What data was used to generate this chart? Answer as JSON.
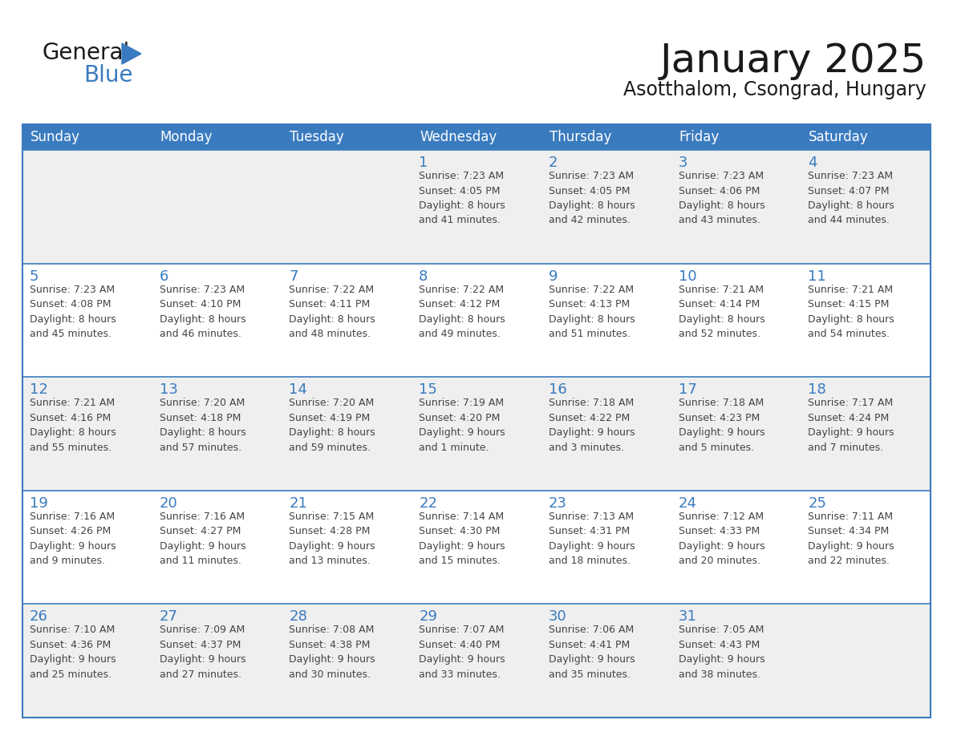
{
  "title": "January 2025",
  "subtitle": "Asotthalom, Csongrad, Hungary",
  "header_bg_color": "#3a7bbf",
  "header_text_color": "#ffffff",
  "cell_bg_even": "#efefef",
  "cell_bg_odd": "#ffffff",
  "border_color": "#3a7bbf",
  "text_color": "#444444",
  "day_number_color": "#3a7bbf",
  "days_of_week": [
    "Sunday",
    "Monday",
    "Tuesday",
    "Wednesday",
    "Thursday",
    "Friday",
    "Saturday"
  ],
  "logo_text1_color": "#1a1a1a",
  "logo_text2_color": "#3a7bbf",
  "logo_triangle_color": "#3a7bbf",
  "title_color": "#1a1a1a",
  "calendar_data": [
    [
      {
        "day": "",
        "info": ""
      },
      {
        "day": "",
        "info": ""
      },
      {
        "day": "",
        "info": ""
      },
      {
        "day": "1",
        "info": "Sunrise: 7:23 AM\nSunset: 4:05 PM\nDaylight: 8 hours\nand 41 minutes."
      },
      {
        "day": "2",
        "info": "Sunrise: 7:23 AM\nSunset: 4:05 PM\nDaylight: 8 hours\nand 42 minutes."
      },
      {
        "day": "3",
        "info": "Sunrise: 7:23 AM\nSunset: 4:06 PM\nDaylight: 8 hours\nand 43 minutes."
      },
      {
        "day": "4",
        "info": "Sunrise: 7:23 AM\nSunset: 4:07 PM\nDaylight: 8 hours\nand 44 minutes."
      }
    ],
    [
      {
        "day": "5",
        "info": "Sunrise: 7:23 AM\nSunset: 4:08 PM\nDaylight: 8 hours\nand 45 minutes."
      },
      {
        "day": "6",
        "info": "Sunrise: 7:23 AM\nSunset: 4:10 PM\nDaylight: 8 hours\nand 46 minutes."
      },
      {
        "day": "7",
        "info": "Sunrise: 7:22 AM\nSunset: 4:11 PM\nDaylight: 8 hours\nand 48 minutes."
      },
      {
        "day": "8",
        "info": "Sunrise: 7:22 AM\nSunset: 4:12 PM\nDaylight: 8 hours\nand 49 minutes."
      },
      {
        "day": "9",
        "info": "Sunrise: 7:22 AM\nSunset: 4:13 PM\nDaylight: 8 hours\nand 51 minutes."
      },
      {
        "day": "10",
        "info": "Sunrise: 7:21 AM\nSunset: 4:14 PM\nDaylight: 8 hours\nand 52 minutes."
      },
      {
        "day": "11",
        "info": "Sunrise: 7:21 AM\nSunset: 4:15 PM\nDaylight: 8 hours\nand 54 minutes."
      }
    ],
    [
      {
        "day": "12",
        "info": "Sunrise: 7:21 AM\nSunset: 4:16 PM\nDaylight: 8 hours\nand 55 minutes."
      },
      {
        "day": "13",
        "info": "Sunrise: 7:20 AM\nSunset: 4:18 PM\nDaylight: 8 hours\nand 57 minutes."
      },
      {
        "day": "14",
        "info": "Sunrise: 7:20 AM\nSunset: 4:19 PM\nDaylight: 8 hours\nand 59 minutes."
      },
      {
        "day": "15",
        "info": "Sunrise: 7:19 AM\nSunset: 4:20 PM\nDaylight: 9 hours\nand 1 minute."
      },
      {
        "day": "16",
        "info": "Sunrise: 7:18 AM\nSunset: 4:22 PM\nDaylight: 9 hours\nand 3 minutes."
      },
      {
        "day": "17",
        "info": "Sunrise: 7:18 AM\nSunset: 4:23 PM\nDaylight: 9 hours\nand 5 minutes."
      },
      {
        "day": "18",
        "info": "Sunrise: 7:17 AM\nSunset: 4:24 PM\nDaylight: 9 hours\nand 7 minutes."
      }
    ],
    [
      {
        "day": "19",
        "info": "Sunrise: 7:16 AM\nSunset: 4:26 PM\nDaylight: 9 hours\nand 9 minutes."
      },
      {
        "day": "20",
        "info": "Sunrise: 7:16 AM\nSunset: 4:27 PM\nDaylight: 9 hours\nand 11 minutes."
      },
      {
        "day": "21",
        "info": "Sunrise: 7:15 AM\nSunset: 4:28 PM\nDaylight: 9 hours\nand 13 minutes."
      },
      {
        "day": "22",
        "info": "Sunrise: 7:14 AM\nSunset: 4:30 PM\nDaylight: 9 hours\nand 15 minutes."
      },
      {
        "day": "23",
        "info": "Sunrise: 7:13 AM\nSunset: 4:31 PM\nDaylight: 9 hours\nand 18 minutes."
      },
      {
        "day": "24",
        "info": "Sunrise: 7:12 AM\nSunset: 4:33 PM\nDaylight: 9 hours\nand 20 minutes."
      },
      {
        "day": "25",
        "info": "Sunrise: 7:11 AM\nSunset: 4:34 PM\nDaylight: 9 hours\nand 22 minutes."
      }
    ],
    [
      {
        "day": "26",
        "info": "Sunrise: 7:10 AM\nSunset: 4:36 PM\nDaylight: 9 hours\nand 25 minutes."
      },
      {
        "day": "27",
        "info": "Sunrise: 7:09 AM\nSunset: 4:37 PM\nDaylight: 9 hours\nand 27 minutes."
      },
      {
        "day": "28",
        "info": "Sunrise: 7:08 AM\nSunset: 4:38 PM\nDaylight: 9 hours\nand 30 minutes."
      },
      {
        "day": "29",
        "info": "Sunrise: 7:07 AM\nSunset: 4:40 PM\nDaylight: 9 hours\nand 33 minutes."
      },
      {
        "day": "30",
        "info": "Sunrise: 7:06 AM\nSunset: 4:41 PM\nDaylight: 9 hours\nand 35 minutes."
      },
      {
        "day": "31",
        "info": "Sunrise: 7:05 AM\nSunset: 4:43 PM\nDaylight: 9 hours\nand 38 minutes."
      },
      {
        "day": "",
        "info": ""
      }
    ]
  ]
}
